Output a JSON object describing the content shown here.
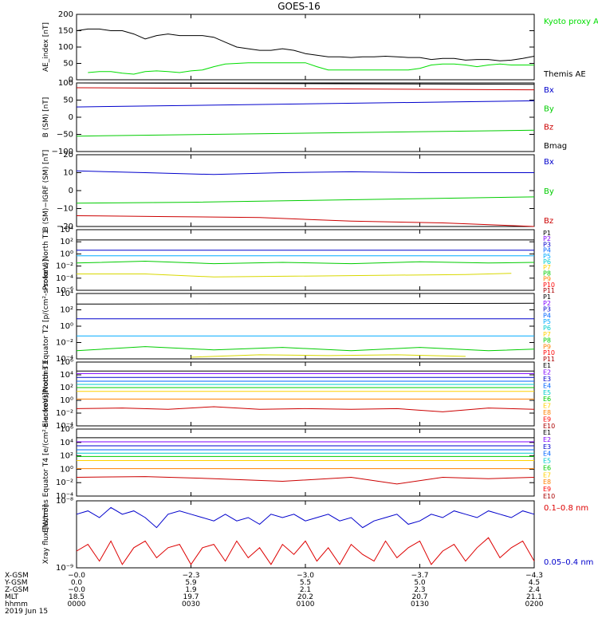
{
  "title": "GOES-16",
  "chart_data": [
    {
      "type": "line",
      "id": "ae",
      "ylabel": "AE_index [nT]",
      "ylim": [
        0,
        200
      ],
      "yticks": [
        "0",
        "50",
        "100",
        "150",
        "200"
      ],
      "series": [
        {
          "name": "Kyoto proxy AE",
          "color": "#00dd00",
          "x": [
            0.05,
            0.1,
            0.15,
            0.2,
            0.25,
            0.3,
            0.35,
            0.4,
            0.45,
            0.5,
            0.55,
            0.6,
            0.65,
            0.7,
            0.75,
            0.8,
            0.85,
            0.9,
            0.95,
            1.0,
            1.05,
            1.1,
            1.15,
            1.2,
            1.25,
            1.3,
            1.35,
            1.4,
            1.45,
            1.5,
            1.55,
            1.6,
            1.65,
            1.7,
            1.75,
            1.8,
            1.85,
            1.9,
            1.95,
            2.0
          ],
          "y": [
            22,
            25,
            25,
            20,
            17,
            25,
            27,
            25,
            22,
            27,
            30,
            40,
            48,
            50,
            52,
            52,
            52,
            52,
            52,
            52,
            40,
            30,
            30,
            30,
            30,
            30,
            30,
            30,
            30,
            35,
            45,
            48,
            48,
            45,
            40,
            45,
            48,
            45,
            45,
            45
          ]
        },
        {
          "name": "Themis AE",
          "color": "#000000",
          "x": [
            0.0,
            0.05,
            0.1,
            0.15,
            0.2,
            0.25,
            0.3,
            0.35,
            0.4,
            0.45,
            0.5,
            0.55,
            0.6,
            0.65,
            0.7,
            0.75,
            0.8,
            0.85,
            0.9,
            0.95,
            1.0,
            1.05,
            1.1,
            1.15,
            1.2,
            1.25,
            1.3,
            1.35,
            1.4,
            1.45,
            1.5,
            1.55,
            1.6,
            1.65,
            1.7,
            1.75,
            1.8,
            1.85,
            1.9,
            1.95,
            2.0
          ],
          "y": [
            150,
            155,
            155,
            150,
            150,
            140,
            125,
            135,
            140,
            135,
            135,
            135,
            130,
            115,
            100,
            95,
            90,
            90,
            95,
            90,
            80,
            75,
            70,
            70,
            68,
            70,
            70,
            72,
            70,
            68,
            68,
            62,
            65,
            65,
            60,
            62,
            62,
            58,
            60,
            65,
            72
          ]
        }
      ]
    },
    {
      "type": "line",
      "id": "bsm",
      "ylabel": "B (SM) [nT]",
      "ylim": [
        -100,
        100
      ],
      "yticks": [
        "−100",
        "−50",
        "0",
        "50",
        "100"
      ],
      "series": [
        {
          "name": "Bx",
          "color": "#0000cc",
          "x": [
            0,
            2
          ],
          "y": [
            30,
            48
          ]
        },
        {
          "name": "By",
          "color": "#00cc00",
          "x": [
            0,
            2
          ],
          "y": [
            -55,
            -38
          ]
        },
        {
          "name": "Bz",
          "color": "#cc0000",
          "x": [
            0,
            2
          ],
          "y": [
            86,
            80
          ]
        },
        {
          "name": "Bmag",
          "color": "#000000",
          "x": [
            0,
            2
          ],
          "y": [
            102,
            96
          ]
        }
      ]
    },
    {
      "type": "line",
      "id": "bigrf",
      "ylabel": "B (SM)−IGRF (SM) [nT]",
      "ylim": [
        -20,
        20
      ],
      "yticks": [
        "−20",
        "−10",
        "0",
        "10",
        "20"
      ],
      "series": [
        {
          "name": "Bx",
          "color": "#0000cc",
          "x": [
            0,
            0.3,
            0.6,
            0.9,
            1.2,
            1.5,
            1.8,
            2.0
          ],
          "y": [
            11,
            10,
            9,
            10,
            10.5,
            10,
            10,
            10
          ]
        },
        {
          "name": "By",
          "color": "#00cc00",
          "x": [
            0,
            0.5,
            1.0,
            1.5,
            2.0
          ],
          "y": [
            -7,
            -6.5,
            -5.5,
            -4.5,
            -3.5
          ]
        },
        {
          "name": "Bz",
          "color": "#cc0000",
          "x": [
            0,
            0.4,
            0.8,
            1.2,
            1.6,
            2.0
          ],
          "y": [
            -14,
            -14.5,
            -15,
            -17,
            -18,
            -20
          ]
        }
      ]
    },
    {
      "type": "line",
      "id": "pn",
      "ylabel": "Protons North T1",
      "ylim": [
        -6,
        4
      ],
      "yscale": "log",
      "yticks": [
        "10⁻⁶",
        "10⁻⁴",
        "10⁻²",
        "10⁰",
        "10²",
        "10⁴"
      ],
      "legend": [
        "P1",
        "P2",
        "P3",
        "P4",
        "P5",
        "P6",
        "P7",
        "P8",
        "P9",
        "P10",
        "P11"
      ],
      "legend_colors": [
        "#000000",
        "#7f00ff",
        "#0000cc",
        "#0066ff",
        "#00aaff",
        "#00cccc",
        "#ffd000",
        "#00cc00",
        "#ff8000",
        "#ff0000",
        "#aa0000"
      ],
      "series": [
        {
          "name": "P1",
          "color": "#000000",
          "x": [
            0,
            2
          ],
          "y": [
            2.3,
            2.3
          ]
        },
        {
          "name": "P3",
          "color": "#0000cc",
          "x": [
            0,
            2
          ],
          "y": [
            0.6,
            0.6
          ]
        },
        {
          "name": "P5",
          "color": "#00aaff",
          "x": [
            0,
            2
          ],
          "y": [
            -0.3,
            -0.3
          ]
        },
        {
          "name": "P8",
          "color": "#00cc00",
          "x": [
            0,
            0.3,
            0.6,
            0.9,
            1.2,
            1.5,
            1.8,
            2.0
          ],
          "y": [
            -1.5,
            -1.2,
            -1.6,
            -1.4,
            -1.6,
            -1.3,
            -1.5,
            -1.4
          ]
        },
        {
          "name": "P7",
          "color": "#d8d800",
          "x": [
            0,
            0.3,
            0.6,
            1.7,
            1.9
          ],
          "y": [
            -3.3,
            -3.3,
            -3.8,
            -3.4,
            -3.2
          ]
        }
      ]
    },
    {
      "type": "line",
      "id": "pe",
      "ylabel": "Protons Equator T2 [p/(cm²-s-sr-keV)]",
      "ylim": [
        -4,
        4
      ],
      "yscale": "log",
      "yticks": [
        "10⁻⁴",
        "10⁻²",
        "10⁰",
        "10²",
        "10⁴"
      ],
      "legend": [
        "P1",
        "P2",
        "P3",
        "P4",
        "P5",
        "P6",
        "P7",
        "P8",
        "P9",
        "P10",
        "P11"
      ],
      "legend_colors": [
        "#000000",
        "#7f00ff",
        "#0000cc",
        "#0066ff",
        "#00aaff",
        "#00cccc",
        "#ffd000",
        "#00cc00",
        "#ff8000",
        "#ff0000",
        "#aa0000"
      ],
      "series": [
        {
          "name": "P1",
          "color": "#000000",
          "x": [
            0,
            2
          ],
          "y": [
            2.7,
            2.8
          ]
        },
        {
          "name": "P3",
          "color": "#0000cc",
          "x": [
            0,
            2
          ],
          "y": [
            0.9,
            0.9
          ]
        },
        {
          "name": "P5",
          "color": "#00aaff",
          "x": [
            0,
            2
          ],
          "y": [
            -1.2,
            -1.2
          ]
        },
        {
          "name": "P8",
          "color": "#00cc00",
          "x": [
            0,
            0.3,
            0.6,
            0.9,
            1.2,
            1.5,
            1.8,
            2.0
          ],
          "y": [
            -3,
            -2.5,
            -2.9,
            -2.6,
            -3,
            -2.6,
            -3,
            -2.8
          ]
        },
        {
          "name": "P7",
          "color": "#d8d800",
          "x": [
            0.5,
            0.8,
            1.1,
            1.4,
            1.7
          ],
          "y": [
            -3.8,
            -3.5,
            -3.6,
            -3.5,
            -3.7
          ]
        }
      ]
    },
    {
      "type": "line",
      "id": "en",
      "ylabel": "Electrons North T3",
      "ylim": [
        -4,
        6
      ],
      "yscale": "log",
      "yticks": [
        "10⁻⁴",
        "10⁻²",
        "10⁰",
        "10²",
        "10⁴",
        "10⁶"
      ],
      "legend": [
        "E1",
        "E2",
        "E3",
        "E4",
        "E5",
        "E6",
        "E7",
        "E8",
        "E9",
        "E10"
      ],
      "legend_colors": [
        "#000000",
        "#7f00ff",
        "#0000cc",
        "#0066ff",
        "#00cccc",
        "#00cc00",
        "#ffd000",
        "#ff8000",
        "#ff0000",
        "#aa0000"
      ],
      "series": [
        {
          "name": "E1",
          "color": "#000000",
          "x": [
            0,
            2
          ],
          "y": [
            4.6,
            4.6
          ]
        },
        {
          "name": "E2",
          "color": "#7f00ff",
          "x": [
            0,
            2
          ],
          "y": [
            4.2,
            4.2
          ]
        },
        {
          "name": "E3",
          "color": "#0000cc",
          "x": [
            0,
            2
          ],
          "y": [
            3.6,
            3.6
          ]
        },
        {
          "name": "E4",
          "color": "#0066ff",
          "x": [
            0,
            2
          ],
          "y": [
            3.0,
            3.0
          ]
        },
        {
          "name": "E5",
          "color": "#00cccc",
          "x": [
            0,
            2
          ],
          "y": [
            2.5,
            2.5
          ]
        },
        {
          "name": "E6",
          "color": "#00cc00",
          "x": [
            0,
            2
          ],
          "y": [
            2.0,
            2.0
          ]
        },
        {
          "name": "E7",
          "color": "#ffd000",
          "x": [
            0,
            2
          ],
          "y": [
            1.4,
            1.4
          ]
        },
        {
          "name": "E8",
          "color": "#ff8000",
          "x": [
            0,
            2
          ],
          "y": [
            0.2,
            0.2
          ]
        },
        {
          "name": "E9",
          "color": "#cc0000",
          "x": [
            0,
            0.2,
            0.4,
            0.6,
            0.8,
            1.0,
            1.2,
            1.4,
            1.6,
            1.8,
            2.0
          ],
          "y": [
            -1.3,
            -1.2,
            -1.4,
            -1.0,
            -1.4,
            -1.3,
            -1.4,
            -1.3,
            -1.8,
            -1.2,
            -1.4
          ]
        }
      ]
    },
    {
      "type": "line",
      "id": "ee",
      "ylabel": "Electrons Equator T4 [e/(cm²-s-sr-keV)]",
      "ylim": [
        -4,
        6
      ],
      "yscale": "log",
      "yticks": [
        "10⁻⁴",
        "10⁻²",
        "10⁰",
        "10²",
        "10⁴",
        "10⁶"
      ],
      "legend": [
        "E1",
        "E2",
        "E3",
        "E4",
        "E5",
        "E6",
        "E7",
        "E8",
        "E9",
        "E10"
      ],
      "legend_colors": [
        "#000000",
        "#7f00ff",
        "#0000cc",
        "#0066ff",
        "#00cccc",
        "#00cc00",
        "#ffd000",
        "#ff8000",
        "#ff0000",
        "#aa0000"
      ],
      "series": [
        {
          "name": "E1",
          "color": "#000000",
          "x": [
            0,
            2
          ],
          "y": [
            4.7,
            4.7
          ]
        },
        {
          "name": "E2",
          "color": "#7f00ff",
          "x": [
            0,
            2
          ],
          "y": [
            4.1,
            4.1
          ]
        },
        {
          "name": "E3",
          "color": "#0000cc",
          "x": [
            0,
            2
          ],
          "y": [
            3.5,
            3.5
          ]
        },
        {
          "name": "E4",
          "color": "#0066ff",
          "x": [
            0,
            2
          ],
          "y": [
            2.9,
            2.9
          ]
        },
        {
          "name": "E5",
          "color": "#00cccc",
          "x": [
            0,
            2
          ],
          "y": [
            2.4,
            2.4
          ]
        },
        {
          "name": "E6",
          "color": "#00cc00",
          "x": [
            0,
            2
          ],
          "y": [
            1.9,
            1.9
          ]
        },
        {
          "name": "E7",
          "color": "#ffd000",
          "x": [
            0,
            2
          ],
          "y": [
            1.3,
            1.3
          ]
        },
        {
          "name": "E8",
          "color": "#ff8000",
          "x": [
            0,
            2
          ],
          "y": [
            0.1,
            0.1
          ]
        },
        {
          "name": "E9",
          "color": "#cc0000",
          "x": [
            0,
            0.3,
            0.6,
            0.9,
            1.2,
            1.4,
            1.6,
            1.8,
            2.0
          ],
          "y": [
            -1.2,
            -1.1,
            -1.4,
            -1.8,
            -1.2,
            -2.2,
            -1.2,
            -1.4,
            -1.2
          ]
        }
      ]
    },
    {
      "type": "line",
      "id": "xray",
      "ylabel": "Xray flux [W/m²]",
      "ylim": [
        -9,
        -8
      ],
      "yscale": "log",
      "yticks": [
        "10⁻⁹",
        "10⁻⁸"
      ],
      "series": [
        {
          "name": "0.1–0.8 nm",
          "color": "#dd0000",
          "x": [
            0.0,
            0.05,
            0.1,
            0.15,
            0.2,
            0.25,
            0.3,
            0.35,
            0.4,
            0.45,
            0.5,
            0.55,
            0.6,
            0.65,
            0.7,
            0.75,
            0.8,
            0.85,
            0.9,
            0.95,
            1.0,
            1.05,
            1.1,
            1.15,
            1.2,
            1.25,
            1.3,
            1.35,
            1.4,
            1.45,
            1.5,
            1.55,
            1.6,
            1.65,
            1.7,
            1.75,
            1.8,
            1.85,
            1.9,
            1.95,
            2.0
          ],
          "y": [
            -8.75,
            -8.65,
            -8.9,
            -8.6,
            -8.95,
            -8.7,
            -8.6,
            -8.85,
            -8.7,
            -8.65,
            -8.95,
            -8.7,
            -8.65,
            -8.9,
            -8.6,
            -8.85,
            -8.7,
            -8.95,
            -8.65,
            -8.8,
            -8.6,
            -8.9,
            -8.7,
            -8.95,
            -8.65,
            -8.8,
            -8.9,
            -8.6,
            -8.85,
            -8.7,
            -8.6,
            -8.95,
            -8.75,
            -8.65,
            -8.9,
            -8.7,
            -8.55,
            -8.85,
            -8.7,
            -8.6,
            -8.9
          ]
        },
        {
          "name": "0.05–0.4 nm",
          "color": "#0000cc",
          "x": [
            0.0,
            0.05,
            0.1,
            0.15,
            0.2,
            0.25,
            0.3,
            0.35,
            0.4,
            0.45,
            0.5,
            0.55,
            0.6,
            0.65,
            0.7,
            0.75,
            0.8,
            0.85,
            0.9,
            0.95,
            1.0,
            1.05,
            1.1,
            1.15,
            1.2,
            1.25,
            1.3,
            1.35,
            1.4,
            1.45,
            1.5,
            1.55,
            1.6,
            1.65,
            1.7,
            1.75,
            1.8,
            1.85,
            1.9,
            1.95,
            2.0
          ],
          "y": [
            -8.2,
            -8.15,
            -8.25,
            -8.1,
            -8.2,
            -8.15,
            -8.25,
            -8.4,
            -8.2,
            -8.15,
            -8.2,
            -8.25,
            -8.3,
            -8.2,
            -8.3,
            -8.25,
            -8.35,
            -8.2,
            -8.25,
            -8.2,
            -8.3,
            -8.25,
            -8.2,
            -8.3,
            -8.25,
            -8.4,
            -8.3,
            -8.25,
            -8.2,
            -8.35,
            -8.3,
            -8.2,
            -8.25,
            -8.15,
            -8.2,
            -8.25,
            -8.15,
            -8.2,
            -8.25,
            -8.15,
            -8.2
          ]
        }
      ]
    }
  ],
  "axis": {
    "rows": [
      {
        "label": "X-GSM",
        "values": [
          "−0.0",
          "−2.3",
          "−3.0",
          "−3.7",
          "−4.3"
        ]
      },
      {
        "label": "Y-GSM",
        "values": [
          "0.0",
          "5.9",
          "5.5",
          "5.0",
          "4.5"
        ]
      },
      {
        "label": "Z-GSM",
        "values": [
          "−0.0",
          "1.9",
          "2.1",
          "2.3",
          "2.4"
        ]
      },
      {
        "label": "MLT",
        "values": [
          "18.5",
          "19.7",
          "20.2",
          "20.7",
          "21.1"
        ]
      },
      {
        "label": "hhmm",
        "values": [
          "0000",
          "0030",
          "0100",
          "0130",
          "0200"
        ]
      }
    ],
    "date": "2019 Jun 15"
  },
  "legend_colors": {
    "kyoto": "#00dd00",
    "themis": "#000000",
    "bx": "#0000cc",
    "by": "#00cc00",
    "bz": "#cc0000",
    "bmag": "#000000",
    "xray_long": "#dd0000",
    "xray_short": "#0000cc"
  }
}
